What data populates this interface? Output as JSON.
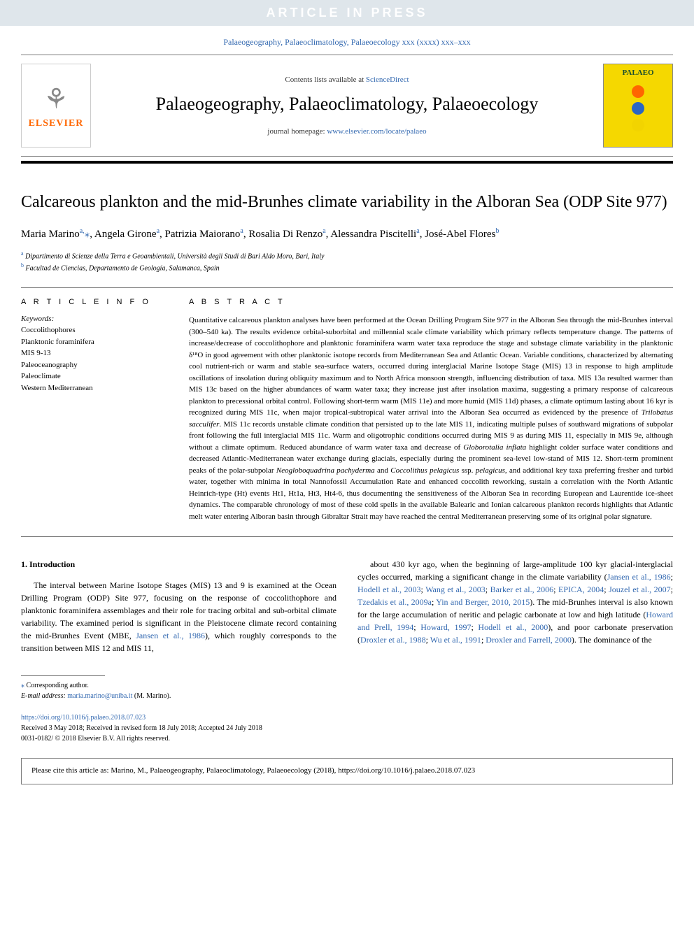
{
  "banner": {
    "text": "ARTICLE IN PRESS"
  },
  "journal_ref": "Palaeogeography, Palaeoclimatology, Palaeoecology xxx (xxxx) xxx–xxx",
  "header": {
    "contents_prefix": "Contents lists available at ",
    "contents_link": "ScienceDirect",
    "journal_title": "Palaeogeography, Palaeoclimatology, Palaeoecology",
    "homepage_prefix": "journal homepage: ",
    "homepage_link": "www.elsevier.com/locate/palaeo",
    "elsevier_name": "ELSEVIER",
    "cover_label": "PALAEO",
    "cover_colors": [
      "#ff6600",
      "#2a66c4",
      "#f2d400"
    ]
  },
  "title": "Calcareous plankton and the mid-Brunhes climate variability in the Alboran Sea (ODP Site 977)",
  "authors_html": "Maria Marino<span class='sup'>a,</span><span class='star'>⁎</span>, Angela Girone<span class='sup'>a</span>, Patrizia Maiorano<span class='sup'>a</span>, Rosalia Di Renzo<span class='sup'>a</span>, Alessandra Piscitelli<span class='sup'>a</span>, José-Abel Flores<span class='sup'>b</span>",
  "affiliations": [
    {
      "sup": "a",
      "text": "Dipartimento di Scienze della Terra e Geoambientali, Università degli Studi di Bari Aldo Moro, Bari, Italy"
    },
    {
      "sup": "b",
      "text": "Facultad de Ciencias, Departamento de Geología, Salamanca, Spain"
    }
  ],
  "info_label": "A R T I C L E  I N F O",
  "abstract_label": "A B S T R A C T",
  "keywords_label": "Keywords:",
  "keywords": [
    "Coccolithophores",
    "Planktonic foraminifera",
    "MIS 9-13",
    "Paleoceanography",
    "Paleoclimate",
    "Western Mediterranean"
  ],
  "abstract": "Quantitative calcareous plankton analyses have been performed at the Ocean Drilling Program Site 977 in the Alboran Sea through the mid-Brunhes interval (300–540 ka). The results evidence orbital-suborbital and millennial scale climate variability which primary reflects temperature change. The patterns of increase/decrease of coccolithophore and planktonic foraminifera warm water taxa reproduce the stage and substage climate variability in the planktonic δ¹⁸O in good agreement with other planktonic isotope records from Mediterranean Sea and Atlantic Ocean. Variable conditions, characterized by alternating cool nutrient-rich or warm and stable sea-surface waters, occurred during interglacial Marine Isotope Stage (MIS) 13 in response to high amplitude oscillations of insolation during obliquity maximum and to North Africa monsoon strength, influencing distribution of taxa. MIS 13a resulted warmer than MIS 13c based on the higher abundances of warm water taxa; they increase just after insolation maxima, suggesting a primary response of calcareous plankton to precessional orbital control. Following short-term warm (MIS 11e) and more humid (MIS 11d) phases, a climate optimum lasting about 16 kyr is recognized during MIS 11c, when major tropical-subtropical water arrival into the Alboran Sea occurred as evidenced by the presence of Trilobatus sacculifer. MIS 11c records unstable climate condition that persisted up to the late MIS 11, indicating multiple pulses of southward migrations of subpolar front following the full interglacial MIS 11c. Warm and oligotrophic conditions occurred during MIS 9 as during MIS 11, especially in MIS 9e, although without a climate optimum. Reduced abundance of warm water taxa and decrease of Globorotalia inflata highlight colder surface water conditions and decreased Atlantic-Mediterranean water exchange during glacials, especially during the prominent sea-level low-stand of MIS 12. Short-term prominent peaks of the polar-subpolar Neogloboquadrina pachyderma and Coccolithus pelagicus ssp. pelagicus, and additional key taxa preferring fresher and turbid water, together with minima in total Nannofossil Accumulation Rate and enhanced coccolith reworking, sustain a correlation with the North Atlantic Heinrich-type (Ht) events Ht1, Ht1a, Ht3, Ht4-6, thus documenting the sensitiveness of the Alboran Sea in recording European and Laurentide ice-sheet dynamics. The comparable chronology of most of these cold spells in the available Balearic and Ionian calcareous plankton records highlights that Atlantic melt water entering Alboran basin through Gibraltar Strait may have reached the central Mediterranean preserving some of its original polar signature.",
  "section1": {
    "heading": "1. Introduction",
    "col1": "The interval between Marine Isotope Stages (MIS) 13 and 9 is examined at the Ocean Drilling Program (ODP) Site 977, focusing on the response of coccolithophore and planktonic foraminifera assemblages and their role for tracing orbital and sub-orbital climate variability. The examined period is significant in the Pleistocene climate record containing the mid-Brunhes Event (MBE, <a class='body-link'>Jansen et al., 1986</a>), which roughly corresponds to the transition between MIS 12 and MIS 11,",
    "col2": "about 430 kyr ago, when the beginning of large-amplitude 100 kyr glacial-interglacial cycles occurred, marking a significant change in the climate variability (<a class='body-link'>Jansen et al., 1986</a>; <a class='body-link'>Hodell et al., 2003</a>; <a class='body-link'>Wang et al., 2003</a>; <a class='body-link'>Barker et al., 2006</a>; <a class='body-link'>EPICA, 2004</a>; <a class='body-link'>Jouzel et al., 2007</a>; <a class='body-link'>Tzedakis et al., 2009a</a>; <a class='body-link'>Yin and Berger, 2010, 2015</a>). The mid-Brunhes interval is also known for the large accumulation of neritic and pelagic carbonate at low and high latitude (<a class='body-link'>Howard and Prell, 1994</a>; <a class='body-link'>Howard, 1997</a>; <a class='body-link'>Hodell et al., 2000</a>), and poor carbonate preservation (<a class='body-link'>Droxler et al., 1988</a>; <a class='body-link'>Wu et al., 1991</a>; <a class='body-link'>Droxler and Farrell, 2000</a>). The dominance of the"
  },
  "footnotes": {
    "corr": "Corresponding author.",
    "email_label": "E-mail address: ",
    "email": "maria.marino@uniba.it",
    "email_name": " (M. Marino)."
  },
  "doi": {
    "link": "https://doi.org/10.1016/j.palaeo.2018.07.023",
    "received": "Received 3 May 2018; Received in revised form 18 July 2018; Accepted 24 July 2018",
    "copyright": "0031-0182/ © 2018 Elsevier B.V. All rights reserved."
  },
  "cite_box": "Please cite this article as: Marino, M., Palaeogeography, Palaeoclimatology, Palaeoecology (2018), https://doi.org/10.1016/j.palaeo.2018.07.023"
}
